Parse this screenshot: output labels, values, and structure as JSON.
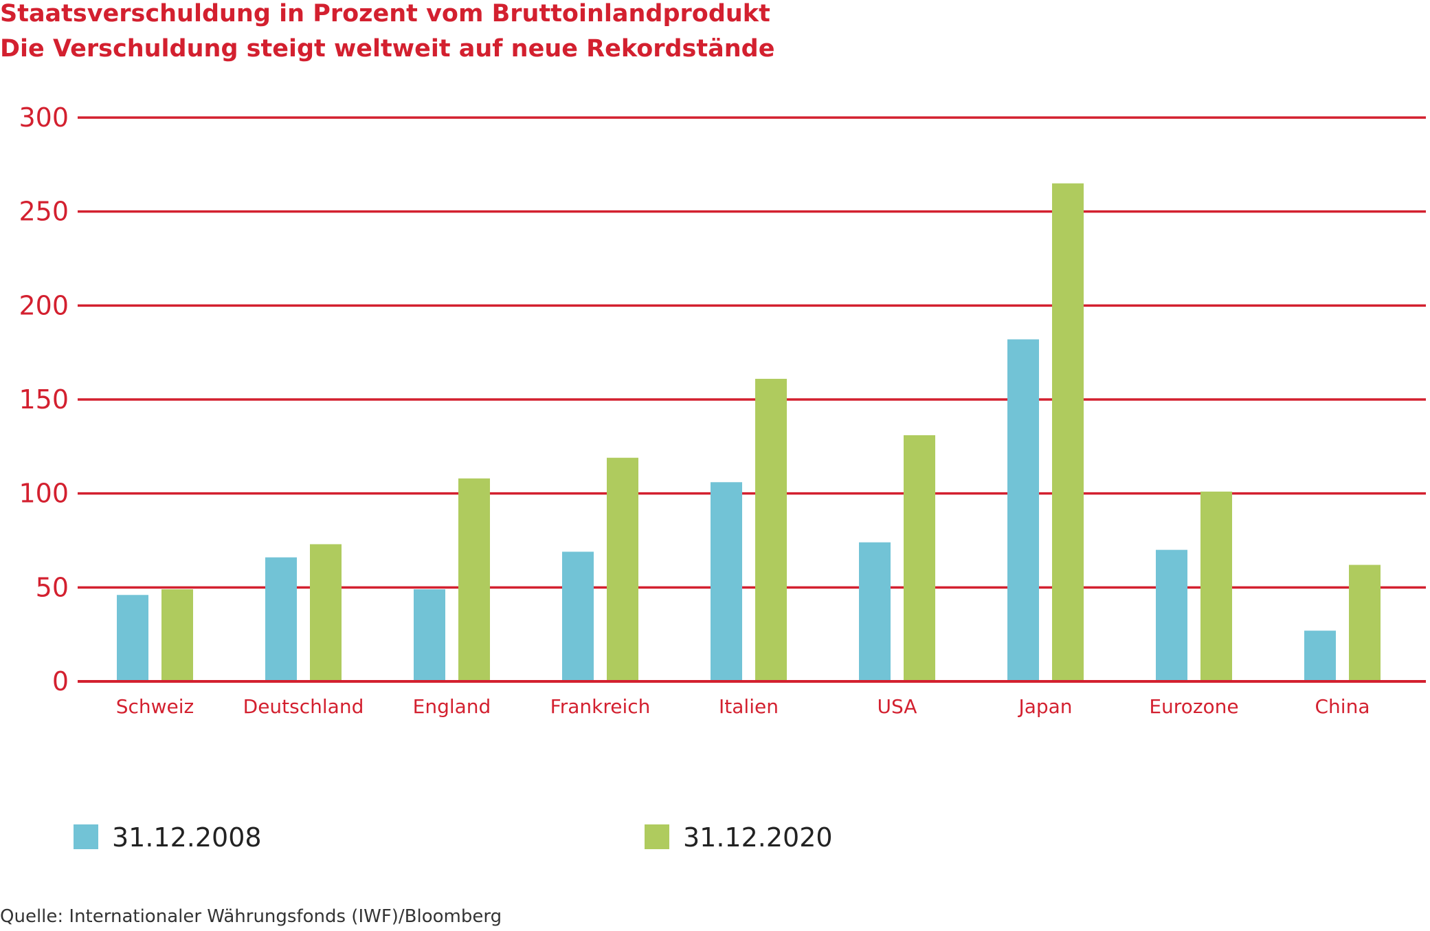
{
  "title": "Staatsverschuldung in Prozent vom Bruttoinlandprodukt",
  "subtitle": "Die Verschuldung steigt weltweit auf neue Rekordstände",
  "source": "Quelle: Internationaler Währungsfonds (IWF)/Bloomberg",
  "colors": {
    "accent": "#d3202f",
    "series_2008": "#72c3d6",
    "series_2020": "#afcb5e"
  },
  "chart_data": {
    "type": "bar",
    "categories": [
      "Schweiz",
      "Deutschland",
      "England",
      "Frankreich",
      "Italien",
      "USA",
      "Japan",
      "Eurozone",
      "China"
    ],
    "series": [
      {
        "name": "31.12.2008",
        "values": [
          46,
          66,
          49,
          69,
          106,
          74,
          182,
          70,
          27
        ]
      },
      {
        "name": "31.12.2020",
        "values": [
          49,
          73,
          108,
          119,
          161,
          131,
          265,
          101,
          62
        ]
      }
    ],
    "yticks": [
      0,
      50,
      100,
      150,
      200,
      250,
      300
    ],
    "ylim": [
      0,
      300
    ],
    "grid": true,
    "legend_position": "bottom"
  }
}
